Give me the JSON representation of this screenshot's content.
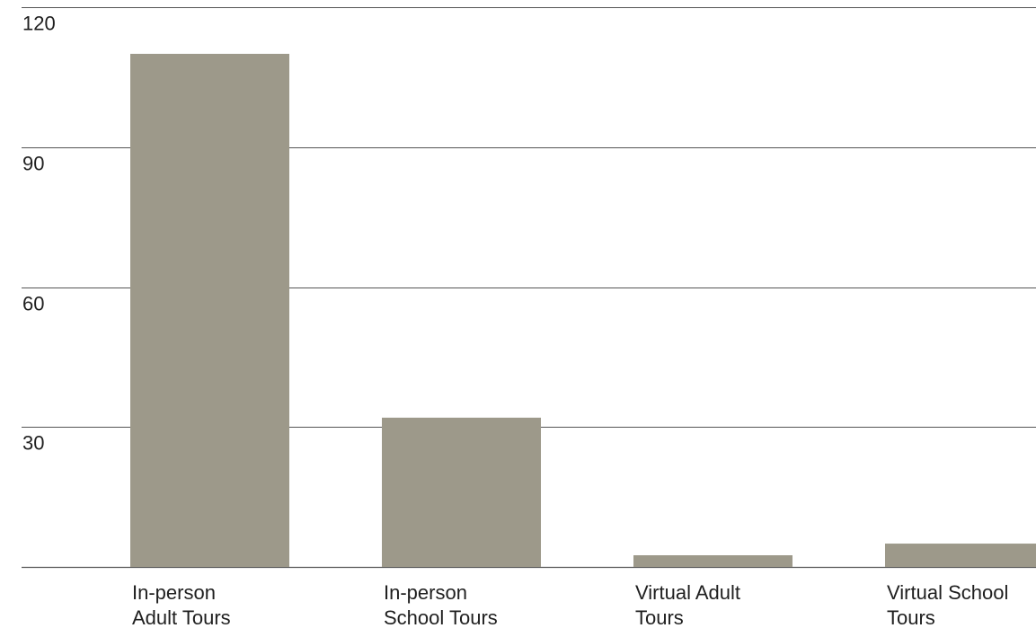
{
  "chart_data": {
    "type": "bar",
    "categories": [
      [
        "In-person",
        "Adult Tours"
      ],
      [
        "In-person",
        "School Tours"
      ],
      [
        "Virtual Adult",
        "Tours"
      ],
      [
        "Virtual School",
        "Tours"
      ]
    ],
    "values": [
      110,
      32,
      2.5,
      5
    ],
    "ylim": [
      0,
      120
    ],
    "yticks": [
      30,
      60,
      90,
      120
    ],
    "grid": true,
    "bar_color": "#9d998a"
  }
}
